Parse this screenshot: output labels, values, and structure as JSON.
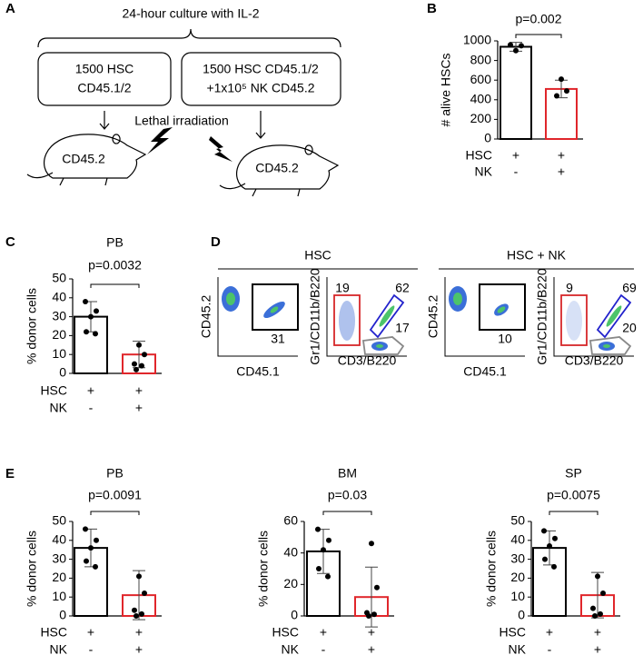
{
  "panel_labels": [
    "A",
    "B",
    "C",
    "D",
    "E"
  ],
  "diagram": {
    "bracket_title": "24-hour culture with IL-2",
    "boxes": [
      {
        "lines": [
          "1500 HSC",
          "CD45.1/2"
        ]
      },
      {
        "lines": [
          "1500 HSC CD45.1/2",
          "+1x10⁵ NK CD45.2"
        ]
      }
    ],
    "treatment": "Lethal irradiation",
    "recipients": [
      "CD45.2",
      "CD45.2"
    ]
  },
  "flow": {
    "groups": [
      {
        "title": "HSC",
        "plots": [
          {
            "x_label": "CD45.1",
            "y_label": "CD45.2",
            "gates": [
              31
            ]
          },
          {
            "x_label": "CD3/B220",
            "y_label": "Gr1/CD11b/B220",
            "gates": [
              19,
              62,
              17
            ]
          }
        ]
      },
      {
        "title": "HSC + NK",
        "plots": [
          {
            "x_label": "CD45.1",
            "y_label": "CD45.2",
            "gates": [
              10
            ]
          },
          {
            "x_label": "CD3/B220",
            "y_label": "Gr1/CD11b/B220",
            "gates": [
              9,
              69,
              20
            ]
          }
        ]
      }
    ]
  },
  "chart_data": [
    {
      "type": "bar",
      "y_label": "# alive HSCs",
      "annotation": "p=0.002",
      "rows": [
        {
          "label": "HSC",
          "marks": [
            "+",
            "+"
          ]
        },
        {
          "label": "NK",
          "marks": [
            "-",
            "+"
          ]
        }
      ],
      "colors": [
        "#000000",
        "#e0262b"
      ],
      "values": [
        940,
        510
      ],
      "errors": [
        45,
        90
      ],
      "points": [
        [
          960,
          950,
          900
        ],
        [
          610,
          490,
          440
        ]
      ],
      "ylim": [
        0,
        1000
      ],
      "yticks": [
        0,
        200,
        400,
        600,
        800,
        1000
      ]
    },
    {
      "type": "bar",
      "title": "PB",
      "y_label": "% donor cells",
      "annotation": "p=0.0032",
      "rows": [
        {
          "label": "HSC",
          "marks": [
            "+",
            "+"
          ]
        },
        {
          "label": "NK",
          "marks": [
            "-",
            "+"
          ]
        }
      ],
      "colors": [
        "#000000",
        "#e0262b"
      ],
      "values": [
        30,
        10
      ],
      "errors": [
        8,
        7
      ],
      "points": [
        [
          38,
          33,
          30,
          22,
          21
        ],
        [
          15,
          10,
          5,
          4,
          2
        ]
      ],
      "ylim": [
        0,
        50
      ],
      "yticks": [
        0,
        10,
        20,
        30,
        40,
        50
      ]
    },
    {
      "type": "bar",
      "title": "PB",
      "y_label": "% donor cells",
      "annotation": "p=0.0091",
      "rows": [
        {
          "label": "HSC",
          "marks": [
            "+",
            "+"
          ]
        },
        {
          "label": "NK",
          "marks": [
            "-",
            "+"
          ]
        }
      ],
      "colors": [
        "#000000",
        "#e0262b"
      ],
      "values": [
        36,
        11
      ],
      "errors": [
        10,
        13
      ],
      "points": [
        [
          46,
          40,
          36,
          29,
          26
        ],
        [
          21,
          12,
          3,
          1,
          0
        ]
      ],
      "ylim": [
        0,
        50
      ],
      "yticks": [
        0,
        10,
        20,
        30,
        40,
        50
      ]
    },
    {
      "type": "bar",
      "title": "BM",
      "y_label": "% donor cells",
      "annotation": "p=0.03",
      "rows": [
        {
          "label": "HSC",
          "marks": [
            "+",
            "+"
          ]
        },
        {
          "label": "NK",
          "marks": [
            "-",
            "+"
          ]
        }
      ],
      "colors": [
        "#000000",
        "#e0262b"
      ],
      "values": [
        41,
        12
      ],
      "errors": [
        14,
        19
      ],
      "points": [
        [
          55,
          48,
          42,
          30,
          25
        ],
        [
          46,
          18,
          2,
          1,
          0
        ]
      ],
      "ylim": [
        0,
        60
      ],
      "yticks": [
        0,
        20,
        40,
        60
      ]
    },
    {
      "type": "bar",
      "title": "SP",
      "y_label": "% donor cells",
      "annotation": "p=0.0075",
      "rows": [
        {
          "label": "HSC",
          "marks": [
            "+",
            "+"
          ]
        },
        {
          "label": "NK",
          "marks": [
            "-",
            "+"
          ]
        }
      ],
      "colors": [
        "#000000",
        "#e0262b"
      ],
      "values": [
        36,
        11
      ],
      "errors": [
        9,
        12
      ],
      "points": [
        [
          45,
          41,
          37,
          30,
          26
        ],
        [
          21,
          12,
          4,
          1,
          0
        ]
      ],
      "ylim": [
        0,
        50
      ],
      "yticks": [
        0,
        10,
        20,
        30,
        40,
        50
      ]
    }
  ]
}
